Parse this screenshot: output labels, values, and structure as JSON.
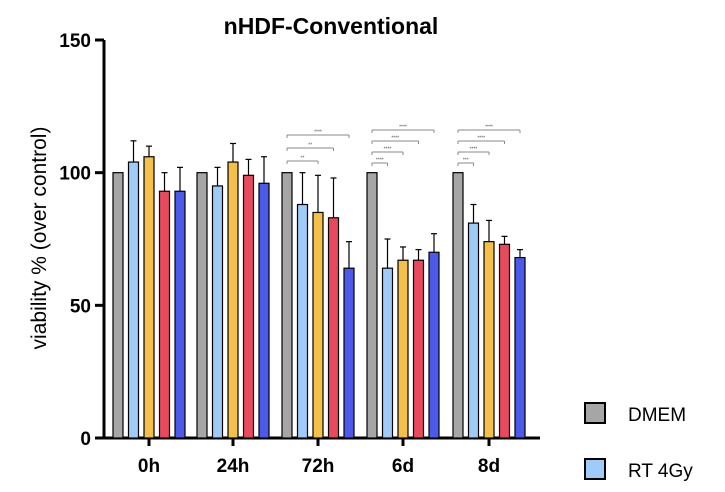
{
  "chart_data": {
    "type": "bar",
    "title": "nHDF-Conventional",
    "xlabel": "",
    "ylabel": "viability % (over control)",
    "ylim": [
      0,
      150
    ],
    "yticks": [
      0,
      50,
      100,
      150
    ],
    "categories": [
      "0h",
      "24h",
      "72h",
      "6d",
      "8d"
    ],
    "series": [
      {
        "name": "DMEM",
        "color": "#a6a6a6",
        "values": [
          100,
          100,
          100,
          100,
          100
        ],
        "errors": [
          0,
          0,
          0,
          0,
          0
        ]
      },
      {
        "name": "RT 4Gy",
        "color": "#9ecbf7",
        "values": [
          104,
          95,
          88,
          64,
          81
        ],
        "errors": [
          8,
          7,
          12,
          11,
          7
        ]
      },
      {
        "name": "",
        "color": "#f5c04a",
        "values": [
          106,
          104,
          85,
          67,
          74
        ],
        "errors": [
          4,
          7,
          14,
          5,
          8
        ]
      },
      {
        "name": "",
        "color": "#e8495d",
        "values": [
          93,
          99,
          83,
          67,
          73
        ],
        "errors": [
          7,
          6,
          15,
          4,
          3
        ]
      },
      {
        "name": "",
        "color": "#4b5ae8",
        "values": [
          93,
          96,
          64,
          70,
          68
        ],
        "errors": [
          9,
          10,
          10,
          7,
          3
        ]
      }
    ],
    "legend": {
      "placement": "bottom-right",
      "entries": [
        "DMEM",
        "RT 4Gy"
      ]
    },
    "significance": [
      {
        "group": "72h",
        "marks": [
          "**",
          "**",
          "****"
        ]
      },
      {
        "group": "6d",
        "marks": [
          "****",
          "****",
          "****",
          "****"
        ]
      },
      {
        "group": "8d",
        "marks": [
          "***",
          "****",
          "****",
          "****"
        ]
      }
    ],
    "grid": false
  }
}
